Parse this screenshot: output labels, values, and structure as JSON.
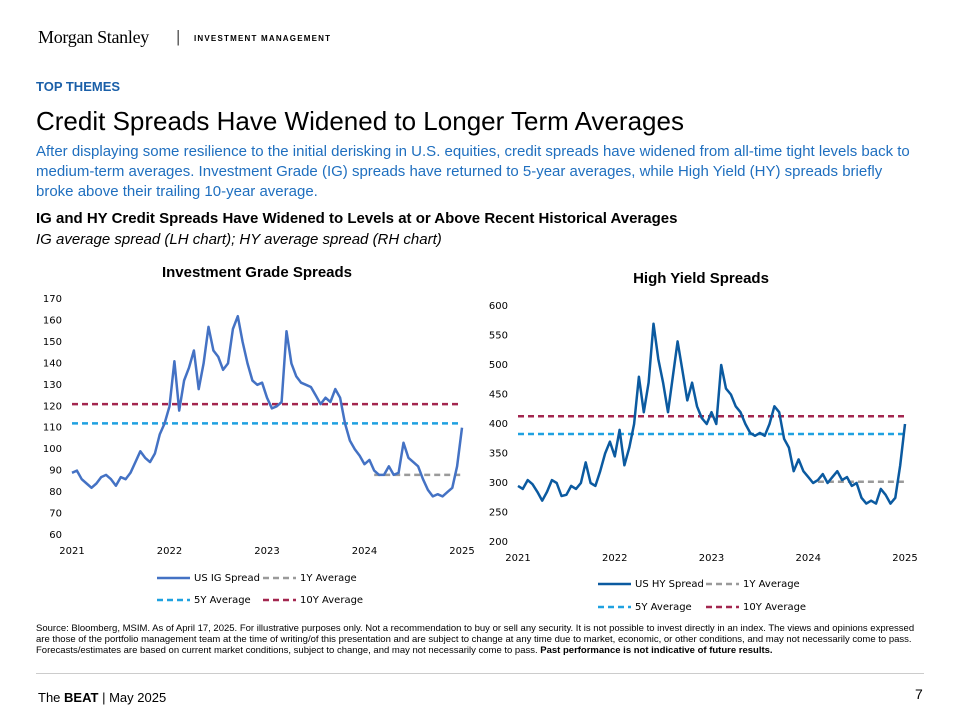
{
  "header": {
    "logo": "Morgan Stanley",
    "division": "INVESTMENT MANAGEMENT",
    "section": "TOP THEMES",
    "title": "Credit Spreads Have Widened to Longer Term Averages",
    "intro": "After displaying some resilience to the initial derisking in U.S. equities, credit spreads have widened from all-time tight levels back to medium-term averages. Investment Grade (IG) spreads have returned to 5-year averages, while High Yield (HY) spreads briefly broke above their trailing 10-year average.",
    "figure_title": "IG and HY Credit Spreads Have Widened to Levels at or Above Recent Historical Averages",
    "figure_subtitle": "IG average spread (LH chart); HY average spread (RH chart)"
  },
  "chart_data": [
    {
      "type": "line",
      "title": "Investment Grade Spreads",
      "xlim": [
        2021,
        2025
      ],
      "xticks": [
        2021,
        2022,
        2023,
        2024,
        2025
      ],
      "ylim": [
        60,
        170
      ],
      "yticks": [
        60,
        70,
        80,
        90,
        100,
        110,
        120,
        130,
        140,
        150,
        160,
        170
      ],
      "grid": false,
      "x": [
        2021,
        2021.05,
        2021.1,
        2021.15,
        2021.2,
        2021.25,
        2021.3,
        2021.35,
        2021.4,
        2021.45,
        2021.5,
        2021.55,
        2021.6,
        2021.65,
        2021.7,
        2021.75,
        2021.8,
        2021.85,
        2021.9,
        2021.95,
        2022,
        2022.05,
        2022.1,
        2022.15,
        2022.2,
        2022.25,
        2022.3,
        2022.35,
        2022.4,
        2022.45,
        2022.5,
        2022.55,
        2022.6,
        2022.65,
        2022.7,
        2022.75,
        2022.8,
        2022.85,
        2022.9,
        2022.95,
        2023,
        2023.05,
        2023.1,
        2023.15,
        2023.2,
        2023.25,
        2023.3,
        2023.35,
        2023.4,
        2023.45,
        2023.5,
        2023.55,
        2023.6,
        2023.65,
        2023.7,
        2023.75,
        2023.8,
        2023.85,
        2023.9,
        2023.95,
        2024,
        2024.05,
        2024.1,
        2024.15,
        2024.2,
        2024.25,
        2024.3,
        2024.35,
        2024.4,
        2024.45,
        2024.5,
        2024.55,
        2024.6,
        2024.65,
        2024.7,
        2024.75,
        2024.8,
        2024.85,
        2024.9,
        2024.95,
        2025
      ],
      "series": [
        {
          "name": "US IG Spread",
          "color": "#4472c4",
          "dash": false,
          "values": [
            89,
            90,
            86,
            84,
            82,
            84,
            87,
            88,
            86,
            83,
            87,
            86,
            89,
            94,
            99,
            96,
            94,
            98,
            107,
            112,
            120,
            141,
            118,
            132,
            138,
            146,
            128,
            140,
            157,
            146,
            143,
            137,
            140,
            156,
            162,
            150,
            140,
            132,
            130,
            131,
            124,
            119,
            120,
            122,
            155,
            140,
            134,
            131,
            130,
            129,
            125,
            121,
            124,
            122,
            128,
            124,
            112,
            104,
            100,
            97,
            93,
            95,
            90,
            88,
            88,
            92,
            88,
            89,
            103,
            96,
            94,
            92,
            86,
            81,
            78,
            79,
            78,
            80,
            82,
            92,
            110
          ]
        },
        {
          "name": "1Y Average",
          "color": "#9a9a9a",
          "dash": true,
          "x": [
            2024.1,
            2025
          ],
          "values": [
            88,
            88
          ]
        },
        {
          "name": "5Y Average",
          "color": "#1fa1e0",
          "dash": true,
          "x": [
            2021,
            2025
          ],
          "values": [
            112,
            112
          ]
        },
        {
          "name": "10Y Average",
          "color": "#a3264f",
          "dash": true,
          "x": [
            2021,
            2025
          ],
          "values": [
            121,
            121
          ]
        }
      ]
    },
    {
      "type": "line",
      "title": "High Yield Spreads",
      "xlim": [
        2021,
        2025
      ],
      "xticks": [
        2021,
        2022,
        2023,
        2024,
        2025
      ],
      "ylim": [
        200,
        600
      ],
      "yticks": [
        200,
        250,
        300,
        350,
        400,
        450,
        500,
        550,
        600
      ],
      "grid": false,
      "x": [
        2021,
        2021.05,
        2021.1,
        2021.15,
        2021.2,
        2021.25,
        2021.3,
        2021.35,
        2021.4,
        2021.45,
        2021.5,
        2021.55,
        2021.6,
        2021.65,
        2021.7,
        2021.75,
        2021.8,
        2021.85,
        2021.9,
        2021.95,
        2022,
        2022.05,
        2022.1,
        2022.15,
        2022.2,
        2022.25,
        2022.3,
        2022.35,
        2022.4,
        2022.45,
        2022.5,
        2022.55,
        2022.6,
        2022.65,
        2022.7,
        2022.75,
        2022.8,
        2022.85,
        2022.9,
        2022.95,
        2023,
        2023.05,
        2023.1,
        2023.15,
        2023.2,
        2023.25,
        2023.3,
        2023.35,
        2023.4,
        2023.45,
        2023.5,
        2023.55,
        2023.6,
        2023.65,
        2023.7,
        2023.75,
        2023.8,
        2023.85,
        2023.9,
        2023.95,
        2024,
        2024.05,
        2024.1,
        2024.15,
        2024.2,
        2024.25,
        2024.3,
        2024.35,
        2024.4,
        2024.45,
        2024.5,
        2024.55,
        2024.6,
        2024.65,
        2024.7,
        2024.75,
        2024.8,
        2024.85,
        2024.9,
        2024.95,
        2025
      ],
      "series": [
        {
          "name": "US HY Spread",
          "color": "#0b5aa0",
          "dash": false,
          "values": [
            295,
            290,
            305,
            298,
            285,
            270,
            285,
            305,
            300,
            278,
            280,
            295,
            290,
            300,
            335,
            300,
            295,
            320,
            350,
            370,
            345,
            390,
            330,
            360,
            400,
            480,
            420,
            470,
            570,
            510,
            470,
            420,
            480,
            540,
            490,
            440,
            470,
            430,
            410,
            400,
            420,
            400,
            500,
            460,
            450,
            430,
            420,
            400,
            385,
            380,
            385,
            380,
            400,
            430,
            420,
            375,
            360,
            320,
            340,
            320,
            310,
            300,
            305,
            315,
            300,
            310,
            320,
            305,
            310,
            295,
            300,
            275,
            265,
            270,
            265,
            290,
            280,
            265,
            275,
            330,
            400
          ]
        },
        {
          "name": "1Y Average",
          "color": "#9a9a9a",
          "dash": true,
          "x": [
            2024.1,
            2025
          ],
          "values": [
            302,
            302
          ]
        },
        {
          "name": "5Y Average",
          "color": "#1fa1e0",
          "dash": true,
          "x": [
            2021,
            2025
          ],
          "values": [
            383,
            383
          ]
        },
        {
          "name": "10Y Average",
          "color": "#a3264f",
          "dash": true,
          "x": [
            2021,
            2025
          ],
          "values": [
            413,
            413
          ]
        }
      ]
    }
  ],
  "source": {
    "text": "Source: Bloomberg, MSIM. As of April 17, 2025. For illustrative purposes only. Not a recommendation to buy or sell any security. It is not possible to invest directly in an index. The views and opinions expressed are those of the portfolio management team at the time of writing/of this presentation and are subject to change at any time due to market, economic, or other conditions, and may not necessarily come to pass.  Forecasts/estimates are based on current market conditions, subject to change, and may not necessarily come to pass.",
    "bold": "Past performance is not indicative of future results."
  },
  "footer": {
    "prefix": "The",
    "brand": "BEAT",
    "date": "May 2025",
    "page": "7"
  }
}
